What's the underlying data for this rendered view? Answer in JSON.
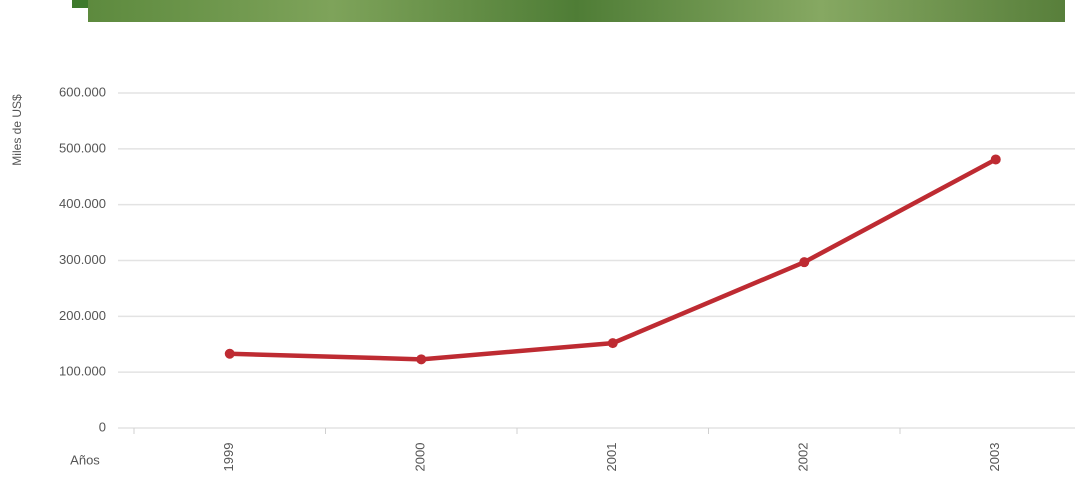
{
  "chart_data": {
    "type": "line",
    "y_label": "Miles de US$",
    "x_label": "Años",
    "categories": [
      "1999",
      "2000",
      "2001",
      "2002",
      "2003"
    ],
    "series": [
      {
        "color": "#be2b32",
        "values": [
          133000,
          123000,
          152000,
          297000,
          481000
        ]
      }
    ],
    "ylim": [
      0,
      600000
    ],
    "yticks": [
      0,
      {
        "value": 100000,
        "label": "100.000"
      },
      {
        "value": 200000,
        "label": "200.000"
      },
      {
        "value": 300000,
        "label": "300.000"
      },
      {
        "value": 400000,
        "label": "400.000"
      },
      {
        "value": 500000,
        "label": "500.000"
      },
      {
        "value": 600000,
        "label": "600.000"
      }
    ],
    "grid": true
  }
}
